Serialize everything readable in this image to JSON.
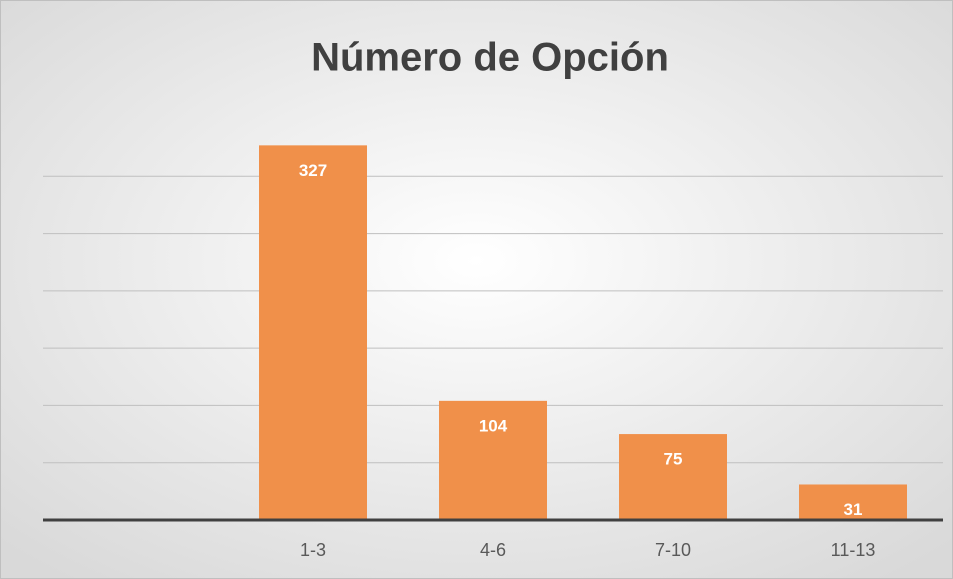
{
  "chart_data": {
    "type": "bar",
    "title": "Número de Opción",
    "categories": [
      null,
      "1-3",
      "4-6",
      "7-10",
      "11-13"
    ],
    "values": [
      null,
      327,
      104,
      75,
      31
    ],
    "color": "#f0904a",
    "ylim": [
      0,
      350
    ],
    "yticks": [
      0,
      50,
      100,
      150,
      200,
      250,
      300
    ],
    "grid": true
  }
}
